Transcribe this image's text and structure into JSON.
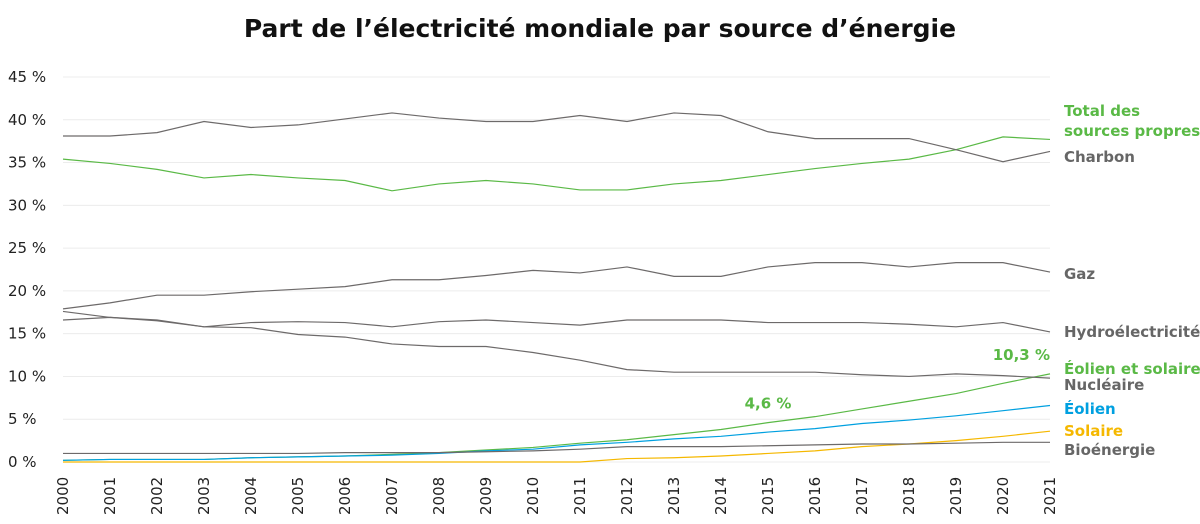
{
  "chart_data": {
    "type": "line",
    "title": "Part de l’électricité mondiale par source d’énergie",
    "xlabel": "",
    "ylabel": "",
    "ylim": [
      0,
      45
    ],
    "y_ticks": [
      "0 %",
      "5 %",
      "10 %",
      "15 %",
      "20 %",
      "25 %",
      "30 %",
      "35 %",
      "40 %",
      "45 %"
    ],
    "grid": true,
    "legend": "right (direct labels)",
    "categories": [
      "2000",
      "2001",
      "2002",
      "2003",
      "2004",
      "2005",
      "2006",
      "2007",
      "2008",
      "2009",
      "2010",
      "2011",
      "2012",
      "2013",
      "2014",
      "2015",
      "2016",
      "2017",
      "2018",
      "2019",
      "2020",
      "2021"
    ],
    "series": [
      {
        "name": "Total des sources propres",
        "color": "#5ab946",
        "values": [
          35.4,
          34.9,
          34.2,
          33.2,
          33.6,
          33.2,
          32.9,
          31.7,
          32.5,
          32.9,
          32.5,
          31.8,
          31.8,
          32.5,
          32.9,
          33.6,
          34.3,
          34.9,
          35.4,
          36.5,
          38.0,
          37.7
        ]
      },
      {
        "name": "Charbon",
        "color": "#6d6a6a",
        "values": [
          38.1,
          38.1,
          38.5,
          39.8,
          39.1,
          39.4,
          40.1,
          40.8,
          40.2,
          39.8,
          39.8,
          40.5,
          39.8,
          40.8,
          40.5,
          38.6,
          37.8,
          37.8,
          37.8,
          36.5,
          35.1,
          36.3
        ]
      },
      {
        "name": "Gaz",
        "color": "#6d6a6a",
        "values": [
          17.9,
          18.6,
          19.5,
          19.5,
          19.9,
          20.2,
          20.5,
          21.3,
          21.3,
          21.8,
          22.4,
          22.1,
          22.8,
          21.7,
          21.7,
          22.8,
          23.3,
          23.3,
          22.8,
          23.3,
          23.3,
          22.2
        ]
      },
      {
        "name": "Hydroélectricité",
        "color": "#6d6a6a",
        "values": [
          16.6,
          16.9,
          16.5,
          15.8,
          16.3,
          16.4,
          16.3,
          15.8,
          16.4,
          16.6,
          16.3,
          16.0,
          16.6,
          16.6,
          16.6,
          16.3,
          16.3,
          16.3,
          16.1,
          15.8,
          16.3,
          15.2
        ]
      },
      {
        "name": "Éolien et solaire",
        "color": "#5ab946",
        "values": [
          0.2,
          0.3,
          0.3,
          0.3,
          0.5,
          0.6,
          0.7,
          0.9,
          1.1,
          1.4,
          1.7,
          2.2,
          2.6,
          3.2,
          3.8,
          4.6,
          5.3,
          6.2,
          7.1,
          8.0,
          9.2,
          10.3
        ]
      },
      {
        "name": "Nucléaire",
        "color": "#6d6a6a",
        "values": [
          17.6,
          16.9,
          16.6,
          15.8,
          15.7,
          14.9,
          14.6,
          13.8,
          13.5,
          13.5,
          12.8,
          11.9,
          10.8,
          10.5,
          10.5,
          10.5,
          10.5,
          10.2,
          10.0,
          10.3,
          10.1,
          9.8
        ]
      },
      {
        "name": "Éolien",
        "color": "#00a0e0",
        "values": [
          0.2,
          0.3,
          0.3,
          0.3,
          0.5,
          0.6,
          0.7,
          0.8,
          1.0,
          1.3,
          1.5,
          2.0,
          2.3,
          2.7,
          3.0,
          3.5,
          3.9,
          4.5,
          4.9,
          5.4,
          6.0,
          6.6
        ]
      },
      {
        "name": "Solaire",
        "color": "#f5b800",
        "values": [
          0,
          0,
          0,
          0,
          0,
          0,
          0,
          0,
          0,
          0,
          0,
          0,
          0.4,
          0.5,
          0.7,
          1.0,
          1.3,
          1.8,
          2.1,
          2.5,
          3.0,
          3.6
        ]
      },
      {
        "name": "Bioénergie",
        "color": "#6d6a6a",
        "values": [
          1.0,
          1.0,
          1.0,
          1.0,
          1.0,
          1.0,
          1.1,
          1.1,
          1.1,
          1.2,
          1.3,
          1.5,
          1.8,
          1.8,
          1.8,
          1.9,
          2.0,
          2.1,
          2.1,
          2.2,
          2.3,
          2.3
        ]
      }
    ],
    "annotations": [
      {
        "text": "4,6 %",
        "x": "2015",
        "y": 4.6,
        "color": "#5ab946"
      },
      {
        "text": "10,3 %",
        "x": "2021",
        "y": 10.3,
        "color": "#5ab946"
      }
    ]
  }
}
